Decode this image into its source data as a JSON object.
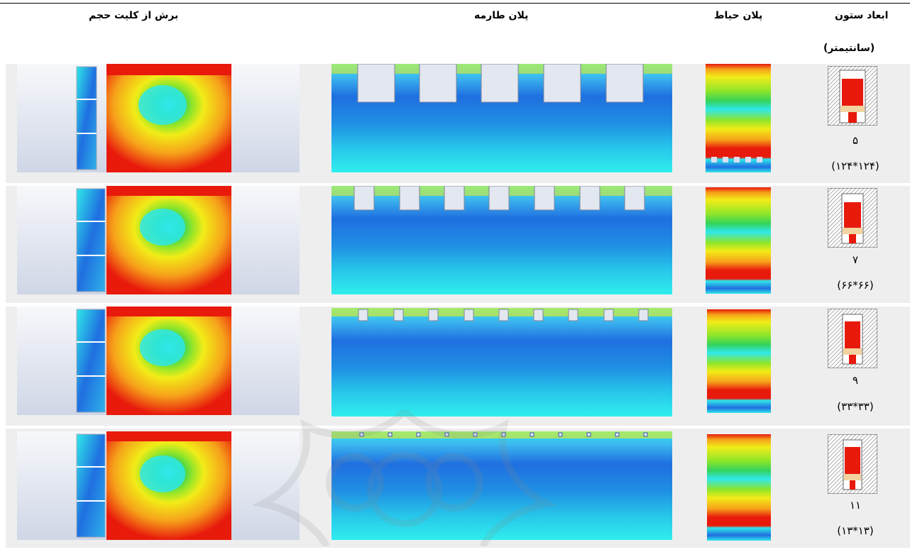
{
  "table": {
    "headers": {
      "section": "برش از کلیت حجم",
      "terrace": "پلان طارمه",
      "courtyard": "پلان حیاط",
      "column_line1": "ابعاد ستون",
      "column_line2": "(سانتیمتر)"
    },
    "rows": [
      {
        "count": "۵",
        "dims": "(۱۲۴*۱۲۴)",
        "openings": 5
      },
      {
        "count": "۷",
        "dims": "(۶۶*۶۶)",
        "openings": 7
      },
      {
        "count": "۹",
        "dims": "(۳۳*۳۳)",
        "openings": 9
      },
      {
        "count": "۱۱",
        "dims": "(۱۳*۱۳)",
        "openings": 11
      }
    ]
  },
  "colors": {
    "contour_red": "#e81a0c",
    "contour_orange": "#f6a11a",
    "contour_yellow": "#f2ec18",
    "contour_green": "#3ad23a",
    "contour_cyan": "#2fe8ea",
    "contour_blue": "#1f6fe0",
    "row_band": "#eeeeee"
  }
}
